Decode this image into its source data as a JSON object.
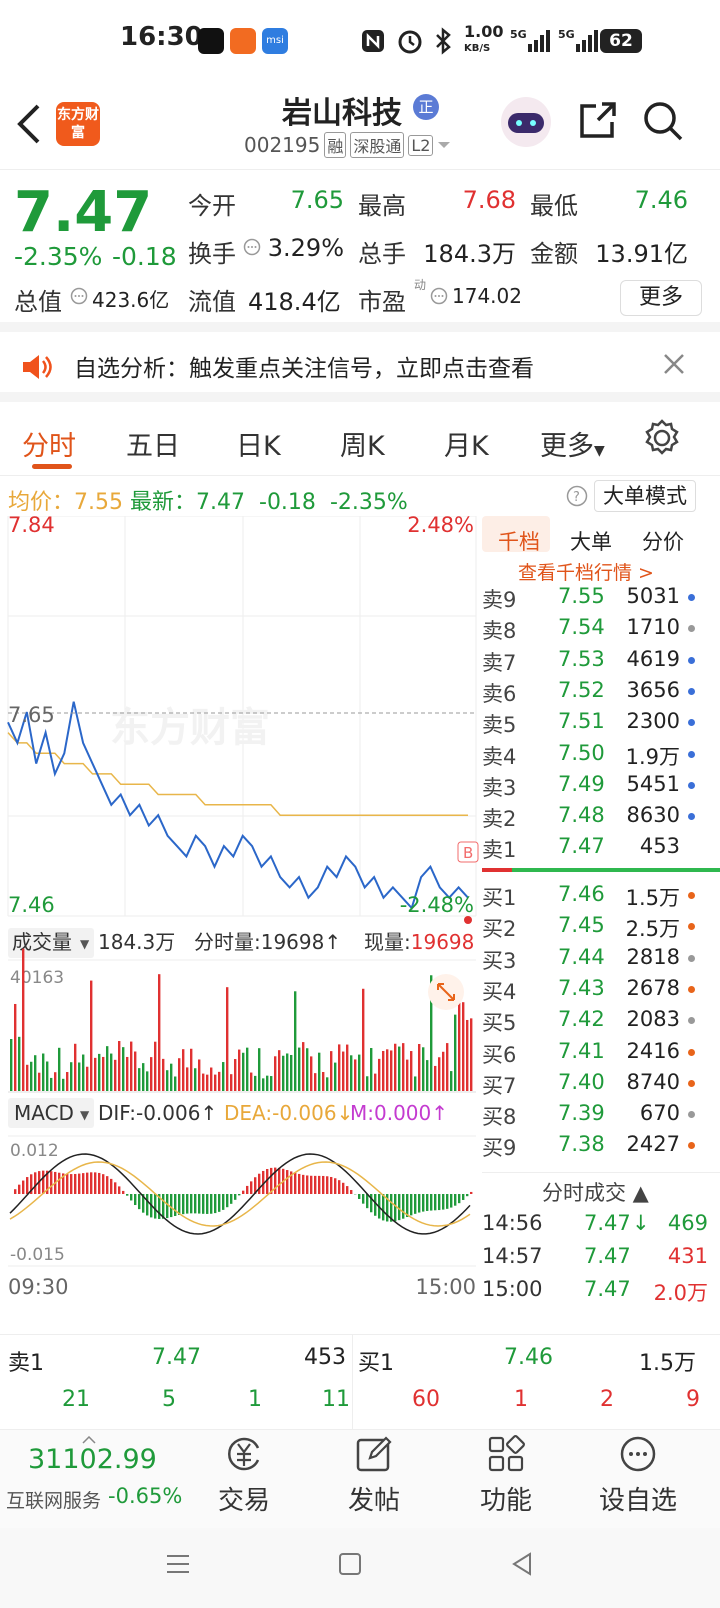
{
  "status_bar": {
    "time": "16:30",
    "net_speed": "1.00",
    "net_unit": "KB/S",
    "battery": "62"
  },
  "header": {
    "logo_text": "东方财富",
    "stock_name": "岩山科技",
    "badge": "正",
    "code": "002195",
    "tags": [
      "融",
      "深股通",
      "L2"
    ]
  },
  "quote": {
    "price": "7.47",
    "change_pct": "-2.35%",
    "change": "-0.18",
    "open_label": "今开",
    "open": "7.65",
    "high_label": "最高",
    "high": "7.68",
    "low_label": "最低",
    "low": "7.46",
    "turnover_label": "换手",
    "turnover": "3.29%",
    "volume_label": "总手",
    "volume": "184.3万",
    "amount_label": "金额",
    "amount": "13.91亿",
    "mcap_label": "总值",
    "mcap": "423.6亿",
    "float_label": "流值",
    "float": "418.4亿",
    "pe_label": "市盈",
    "pe_sup": "动",
    "pe": "174.02",
    "more": "更多"
  },
  "alert": {
    "text": "自选分析：触发重点关注信号，立即点击查看"
  },
  "tabs": [
    "分时",
    "五日",
    "日K",
    "周K",
    "月K",
    "更多"
  ],
  "info_line": {
    "avg_label": "均价：",
    "avg": "7.55",
    "latest_label": "最新：",
    "latest": "7.47",
    "chg": "-0.18",
    "pct": "-2.35%",
    "mode": "大单模式"
  },
  "chart": {
    "y_top": "7.84",
    "y_mid": "7.65",
    "y_bottom": "7.46",
    "pct_top": "2.48%",
    "pct_bottom": "-2.48%",
    "watermark": "东方财富",
    "b_marker": "B",
    "vol_label": "成交量",
    "vol_total": "184.3万",
    "tick_vol_label": "分时量:",
    "tick_vol": "19698",
    "cur_vol_label": "现量:",
    "cur_vol": "19698",
    "vol_max": "40163",
    "macd_label": "MACD",
    "dif": "DIF:-0.006",
    "dea": "DEA:-0.006",
    "m": "M:0.000",
    "macd_top": "0.012",
    "macd_bottom": "-0.015",
    "time_start": "09:30",
    "time_end": "15:00"
  },
  "chart_data": {
    "type": "line",
    "price_series": [
      7.64,
      7.62,
      7.65,
      7.6,
      7.63,
      7.59,
      7.61,
      7.66,
      7.62,
      7.6,
      7.58,
      7.56,
      7.57,
      7.55,
      7.56,
      7.54,
      7.55,
      7.53,
      7.52,
      7.51,
      7.53,
      7.52,
      7.5,
      7.52,
      7.51,
      7.53,
      7.52,
      7.5,
      7.51,
      7.49,
      7.48,
      7.49,
      7.47,
      7.48,
      7.5,
      7.49,
      7.51,
      7.5,
      7.48,
      7.49,
      7.47,
      7.48,
      7.47,
      7.46,
      7.49,
      7.5,
      7.48,
      7.47,
      7.48,
      7.47
    ],
    "avg_series": [
      7.63,
      7.62,
      7.62,
      7.61,
      7.61,
      7.61,
      7.6,
      7.6,
      7.6,
      7.59,
      7.59,
      7.59,
      7.58,
      7.58,
      7.58,
      7.58,
      7.57,
      7.57,
      7.57,
      7.57,
      7.57,
      7.56,
      7.56,
      7.56,
      7.56,
      7.56,
      7.56,
      7.56,
      7.56,
      7.55,
      7.55,
      7.55,
      7.55,
      7.55,
      7.55,
      7.55,
      7.55,
      7.55,
      7.55,
      7.55,
      7.55,
      7.55,
      7.55,
      7.55,
      7.55,
      7.55,
      7.55,
      7.55,
      7.55,
      7.55
    ],
    "ylim": [
      7.46,
      7.84
    ],
    "x_range": [
      "09:30",
      "15:00"
    ]
  },
  "order_book": {
    "tabs": [
      "千档",
      "大单",
      "分价"
    ],
    "link": "查看千档行情 >",
    "sells": [
      {
        "label": "卖9",
        "price": "7.55",
        "vol": "5031",
        "dot": "#3a6fd8"
      },
      {
        "label": "卖8",
        "price": "7.54",
        "vol": "1710",
        "dot": "#999999"
      },
      {
        "label": "卖7",
        "price": "7.53",
        "vol": "4619",
        "dot": "#3a6fd8"
      },
      {
        "label": "卖6",
        "price": "7.52",
        "vol": "3656",
        "dot": "#3a6fd8"
      },
      {
        "label": "卖5",
        "price": "7.51",
        "vol": "2300",
        "dot": "#3a6fd8"
      },
      {
        "label": "卖4",
        "price": "7.50",
        "vol": "1.9万",
        "dot": "#3a6fd8"
      },
      {
        "label": "卖3",
        "price": "7.49",
        "vol": "5451",
        "dot": "#3a6fd8"
      },
      {
        "label": "卖2",
        "price": "7.48",
        "vol": "8630",
        "dot": "#3a6fd8"
      },
      {
        "label": "卖1",
        "price": "7.47",
        "vol": "453",
        "dot": ""
      }
    ],
    "buys": [
      {
        "label": "买1",
        "price": "7.46",
        "vol": "1.5万",
        "dot": "#e8641a"
      },
      {
        "label": "买2",
        "price": "7.45",
        "vol": "2.5万",
        "dot": "#e8641a"
      },
      {
        "label": "买3",
        "price": "7.44",
        "vol": "2818",
        "dot": "#999999"
      },
      {
        "label": "买4",
        "price": "7.43",
        "vol": "2678",
        "dot": "#e8641a"
      },
      {
        "label": "买5",
        "price": "7.42",
        "vol": "2083",
        "dot": "#999999"
      },
      {
        "label": "买6",
        "price": "7.41",
        "vol": "2416",
        "dot": "#e8641a"
      },
      {
        "label": "买7",
        "price": "7.40",
        "vol": "8740",
        "dot": "#e8641a"
      },
      {
        "label": "买8",
        "price": "7.39",
        "vol": "670",
        "dot": "#999999"
      },
      {
        "label": "买9",
        "price": "7.38",
        "vol": "2427",
        "dot": "#e8641a"
      }
    ],
    "ticks_header": "分时成交",
    "ticks": [
      {
        "time": "14:56",
        "price": "7.47",
        "vol": "469",
        "dir": "down"
      },
      {
        "time": "14:57",
        "price": "7.47",
        "vol": "431",
        "dir": ""
      },
      {
        "time": "15:00",
        "price": "7.47",
        "vol": "2.0万",
        "dir": ""
      }
    ]
  },
  "tape": {
    "sell": {
      "label": "卖1",
      "price": "7.47",
      "vol": "453",
      "nums": [
        "21",
        "5",
        "1",
        "11"
      ]
    },
    "buy": {
      "label": "买1",
      "price": "7.46",
      "vol": "1.5万",
      "nums": [
        "60",
        "1",
        "2",
        "9"
      ]
    }
  },
  "bottom_nav": {
    "index_value": "31102.99",
    "index_name": "互联网服务",
    "index_pct": "-0.65%",
    "items": [
      "交易",
      "发帖",
      "功能",
      "设自选"
    ]
  },
  "colors": {
    "up": "#e03131",
    "down": "#1f9a3a",
    "accent": "#e0541a",
    "price_line": "#2b67c9",
    "avg_line": "#e8b64a"
  }
}
